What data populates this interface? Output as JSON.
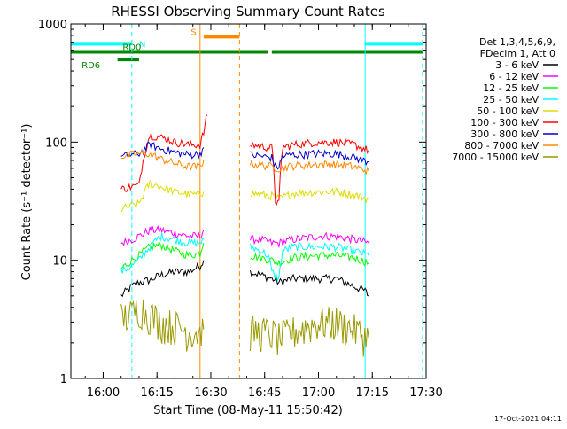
{
  "chart_data": {
    "type": "line",
    "title": "RHESSI Observing Summary Count Rates",
    "xlabel": "Start Time (08-May-11 15:50:42)",
    "ylabel": "Count Rate (s⁻¹ detector⁻¹)",
    "yscale": "log",
    "ylim": [
      1,
      1000
    ],
    "xlim": [
      "15:51",
      "17:30"
    ],
    "y_ticks": [
      "1",
      "10",
      "100",
      "1000"
    ],
    "x_ticks": [
      "16:00",
      "16:15",
      "16:30",
      "16:45",
      "17:00",
      "17:15",
      "17:30"
    ],
    "legend_header": [
      "Det 1,3,4,5,6,9,",
      "FDecim 1, Att 0"
    ],
    "legend_position": "right",
    "timestamp": "17-Oct-2021 04:11",
    "series": [
      {
        "name": "3 - 6 keV",
        "color": "#000000",
        "segments": [
          [
            [
              "16:05",
              5
            ],
            [
              "16:08",
              6
            ],
            [
              "16:10",
              6.5
            ],
            [
              "16:13",
              6.8
            ],
            [
              "16:16",
              7.5
            ],
            [
              "16:20",
              8
            ],
            [
              "16:24",
              8
            ],
            [
              "16:27",
              9
            ],
            [
              "16:28",
              10
            ]
          ],
          [
            [
              "16:41",
              8
            ],
            [
              "16:44",
              7.5
            ],
            [
              "16:47",
              7
            ],
            [
              "16:49",
              6.5
            ],
            [
              "16:53",
              7
            ],
            [
              "17:00",
              7
            ],
            [
              "17:05",
              7
            ],
            [
              "17:10",
              6
            ],
            [
              "17:13",
              5.5
            ],
            [
              "17:14",
              5
            ]
          ]
        ]
      },
      {
        "name": "6 - 12 keV",
        "color": "#ff00ff",
        "segments": [
          [
            [
              "16:05",
              14
            ],
            [
              "16:08",
              15
            ],
            [
              "16:10",
              16
            ],
            [
              "16:13",
              18
            ],
            [
              "16:16",
              18
            ],
            [
              "16:20",
              17
            ],
            [
              "16:24",
              16
            ],
            [
              "16:27",
              16
            ],
            [
              "16:28",
              18
            ]
          ],
          [
            [
              "16:41",
              15
            ],
            [
              "16:44",
              15
            ],
            [
              "16:47",
              14
            ],
            [
              "16:49",
              14
            ],
            [
              "16:53",
              15
            ],
            [
              "17:00",
              16
            ],
            [
              "17:05",
              16
            ],
            [
              "17:10",
              15
            ],
            [
              "17:14",
              14
            ]
          ]
        ]
      },
      {
        "name": "12 - 25 keV",
        "color": "#00ff00",
        "segments": [
          [
            [
              "16:05",
              8.5
            ],
            [
              "16:08",
              10
            ],
            [
              "16:10",
              11
            ],
            [
              "16:13",
              13
            ],
            [
              "16:16",
              13.5
            ],
            [
              "16:20",
              12
            ],
            [
              "16:24",
              11
            ],
            [
              "16:27",
              11.5
            ],
            [
              "16:28",
              14
            ]
          ],
          [
            [
              "16:41",
              11
            ],
            [
              "16:44",
              10.5
            ],
            [
              "16:47",
              10
            ],
            [
              "16:49",
              9.5
            ],
            [
              "16:53",
              10.5
            ],
            [
              "17:00",
              11
            ],
            [
              "17:05",
              11
            ],
            [
              "17:10",
              10.5
            ],
            [
              "17:14",
              9.5
            ]
          ]
        ]
      },
      {
        "name": "25 - 50 keV",
        "color": "#00ffff",
        "segments": [
          [
            [
              "16:05",
              8
            ],
            [
              "16:08",
              9
            ],
            [
              "16:10",
              10
            ],
            [
              "16:13",
              13
            ],
            [
              "16:16",
              16
            ],
            [
              "16:20",
              15
            ],
            [
              "16:24",
              14
            ],
            [
              "16:27",
              14
            ],
            [
              "16:28",
              15
            ]
          ],
          [
            [
              "16:41",
              13
            ],
            [
              "16:44",
              12
            ],
            [
              "16:46",
              11
            ],
            [
              "16:47",
              8
            ],
            [
              "16:49",
              7
            ],
            [
              "16:50",
              12
            ],
            [
              "16:53",
              13
            ],
            [
              "17:00",
              13
            ],
            [
              "17:05",
              13
            ],
            [
              "17:10",
              12
            ],
            [
              "17:14",
              11
            ]
          ]
        ]
      },
      {
        "name": "50 - 100 keV",
        "color": "#dddd00",
        "segments": [
          [
            [
              "16:05",
              27
            ],
            [
              "16:08",
              29
            ],
            [
              "16:10",
              30
            ],
            [
              "16:13",
              45
            ],
            [
              "16:16",
              42
            ],
            [
              "16:20",
              38
            ],
            [
              "16:24",
              36
            ],
            [
              "16:27",
              36
            ],
            [
              "16:28",
              38
            ]
          ],
          [
            [
              "16:41",
              37
            ],
            [
              "16:44",
              36
            ],
            [
              "16:47",
              35
            ],
            [
              "16:49",
              33
            ],
            [
              "16:53",
              37
            ],
            [
              "17:00",
              38
            ],
            [
              "17:05",
              38
            ],
            [
              "17:10",
              36
            ],
            [
              "17:14",
              33
            ]
          ]
        ]
      },
      {
        "name": "100 - 300 keV",
        "color": "#ff0000",
        "segments": [
          [
            [
              "16:05",
              40
            ],
            [
              "16:08",
              42
            ],
            [
              "16:10",
              43
            ],
            [
              "16:13",
              115
            ],
            [
              "16:16",
              110
            ],
            [
              "16:20",
              100
            ],
            [
              "16:24",
              95
            ],
            [
              "16:27",
              95
            ],
            [
              "16:28",
              120
            ],
            [
              "16:29",
              170
            ]
          ],
          [
            [
              "16:41",
              95
            ],
            [
              "16:44",
              92
            ],
            [
              "16:47",
              90
            ],
            [
              "16:48",
              32
            ],
            [
              "16:49",
              30
            ],
            [
              "16:50",
              90
            ],
            [
              "16:53",
              95
            ],
            [
              "17:00",
              100
            ],
            [
              "17:05",
              100
            ],
            [
              "17:10",
              95
            ],
            [
              "17:14",
              85
            ]
          ]
        ]
      },
      {
        "name": "300 - 800 keV",
        "color": "#0000cc",
        "segments": [
          [
            [
              "16:05",
              75
            ],
            [
              "16:08",
              78
            ],
            [
              "16:10",
              80
            ],
            [
              "16:13",
              95
            ],
            [
              "16:16",
              88
            ],
            [
              "16:20",
              82
            ],
            [
              "16:24",
              78
            ],
            [
              "16:27",
              80
            ],
            [
              "16:28",
              90
            ]
          ],
          [
            [
              "16:41",
              78
            ],
            [
              "16:44",
              76
            ],
            [
              "16:47",
              74
            ],
            [
              "16:48",
              62
            ],
            [
              "16:49",
              62
            ],
            [
              "16:50",
              76
            ],
            [
              "16:53",
              78
            ],
            [
              "17:00",
              80
            ],
            [
              "17:05",
              80
            ],
            [
              "17:10",
              74
            ],
            [
              "17:14",
              68
            ]
          ]
        ]
      },
      {
        "name": "800 - 7000 keV",
        "color": "#ff8800",
        "segments": [
          [
            [
              "16:05",
              76
            ],
            [
              "16:08",
              78
            ],
            [
              "16:10",
              80
            ],
            [
              "16:13",
              80
            ],
            [
              "16:16",
              72
            ],
            [
              "16:20",
              66
            ],
            [
              "16:24",
              62
            ],
            [
              "16:27",
              62
            ],
            [
              "16:28",
              70
            ]
          ],
          [
            [
              "16:41",
              66
            ],
            [
              "16:44",
              64
            ],
            [
              "16:47",
              62
            ],
            [
              "16:49",
              60
            ],
            [
              "16:53",
              63
            ],
            [
              "17:00",
              65
            ],
            [
              "17:05",
              65
            ],
            [
              "17:10",
              62
            ],
            [
              "17:14",
              57
            ]
          ]
        ]
      },
      {
        "name": "7000 - 15000 keV",
        "color": "#999900",
        "segments": [
          [
            [
              "16:05",
              3.3
            ],
            [
              "16:08",
              3.5
            ],
            [
              "16:10",
              4
            ],
            [
              "16:13",
              3.5
            ],
            [
              "16:16",
              3
            ],
            [
              "16:20",
              2.8
            ],
            [
              "16:24",
              2.5
            ],
            [
              "16:27",
              2.5
            ],
            [
              "16:28",
              2.6
            ]
          ],
          [
            [
              "16:41",
              2.5
            ],
            [
              "16:44",
              2.5
            ],
            [
              "16:47",
              2.4
            ],
            [
              "16:49",
              2.2
            ],
            [
              "16:53",
              2.5
            ],
            [
              "17:00",
              3
            ],
            [
              "17:05",
              3
            ],
            [
              "17:10",
              2.6
            ],
            [
              "17:14",
              2.2
            ]
          ]
        ]
      }
    ],
    "flags": [
      {
        "label": "N",
        "color": "#00ffff",
        "ranges": [
          [
            "15:51",
            "16:08"
          ],
          [
            "17:13",
            "17:29"
          ]
        ],
        "level": 680
      },
      {
        "label": "RD0",
        "color": "#008800",
        "ranges": [
          [
            "15:51",
            "16:38"
          ],
          [
            "16:38",
            "16:46"
          ],
          [
            "16:47",
            "16:49"
          ],
          [
            "16:49",
            "17:29"
          ]
        ],
        "level": 580
      },
      {
        "label": "RD6",
        "color": "#008800",
        "ranges": [
          [
            "16:04",
            "16:10"
          ]
        ],
        "level": 500
      },
      {
        "label": "S",
        "color": "#ff8800",
        "ranges": [
          [
            "16:28",
            "16:38"
          ]
        ],
        "level": 780
      }
    ],
    "vlines": [
      {
        "time": "15:51",
        "color": "#00ffff",
        "dashed": false
      },
      {
        "time": "16:08",
        "color": "#00ffff",
        "dashed": true
      },
      {
        "time": "17:13",
        "color": "#00ffff",
        "dashed": false
      },
      {
        "time": "17:29",
        "color": "#00ffff",
        "dashed": true
      },
      {
        "time": "16:27",
        "color": "#ff8800",
        "dashed": false
      },
      {
        "time": "16:38",
        "color": "#ff8800",
        "dashed": true
      }
    ]
  }
}
